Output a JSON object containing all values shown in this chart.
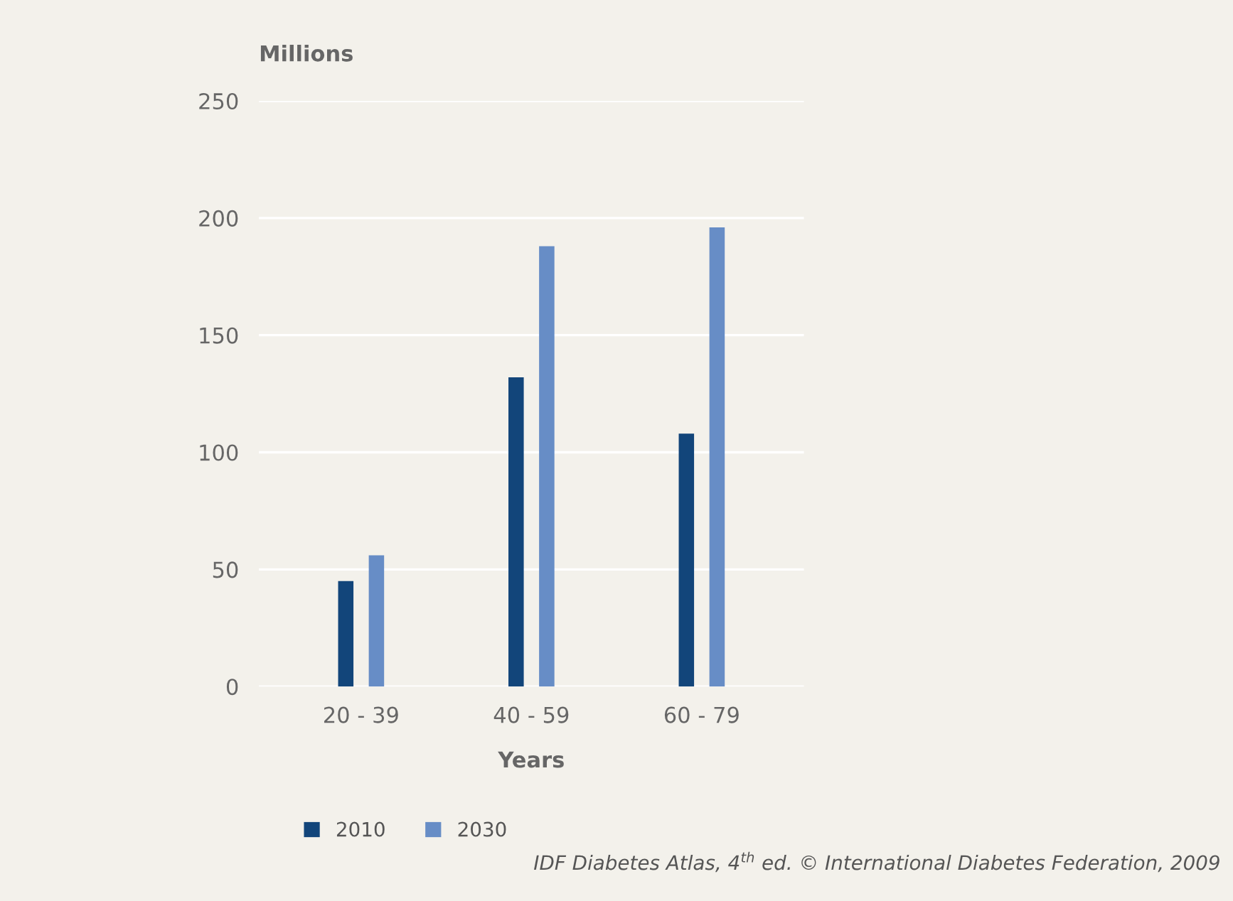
{
  "chart_data": {
    "type": "bar",
    "ylabel": "Millions",
    "xlabel": "Years",
    "categories": [
      "20 - 39",
      "40 - 59",
      "60 - 79"
    ],
    "series": [
      {
        "name": "2010",
        "color": "#12457a",
        "values": [
          45,
          132,
          108
        ]
      },
      {
        "name": "2030",
        "color": "#678dc6",
        "values": [
          56,
          188,
          196
        ]
      }
    ],
    "ylim": [
      0,
      250
    ],
    "yticks": [
      0,
      50,
      100,
      150,
      200,
      250
    ],
    "grid": "y",
    "legend": "bottom left",
    "annotations": [
      "IDF Diabetes Atlas, 4$^{th}$ ed. © International Diabetes Federation, 2009"
    ]
  }
}
